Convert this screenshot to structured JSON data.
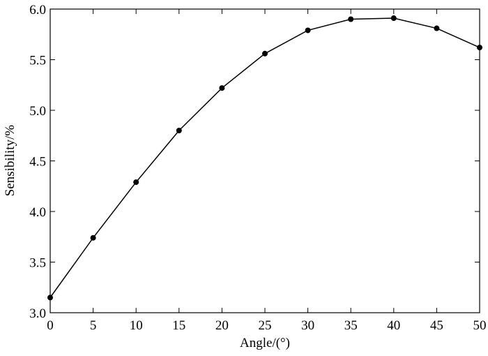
{
  "chart_data": {
    "type": "line",
    "x_label": "Angle/(°)",
    "y_label": "Sensibility/%",
    "x": [
      0,
      5,
      10,
      15,
      20,
      25,
      30,
      35,
      40,
      45,
      50
    ],
    "series": [
      {
        "name": null,
        "color": "#000000",
        "values": [
          3.15,
          3.74,
          4.29,
          4.8,
          5.22,
          5.56,
          5.79,
          5.9,
          5.91,
          5.81,
          5.62
        ]
      }
    ],
    "xlim": [
      0,
      50
    ],
    "xticks": [
      0,
      5,
      10,
      15,
      20,
      25,
      30,
      35,
      40,
      45,
      50
    ],
    "ylim": [
      3,
      6
    ],
    "yticks": [
      {
        "value": 3,
        "label": "3.0"
      },
      3.5,
      {
        "value": 4,
        "label": "4.0"
      },
      4.5,
      {
        "value": 5,
        "label": "5.0"
      },
      5.5,
      {
        "value": 6,
        "label": "6.0"
      }
    ],
    "grid": false
  }
}
